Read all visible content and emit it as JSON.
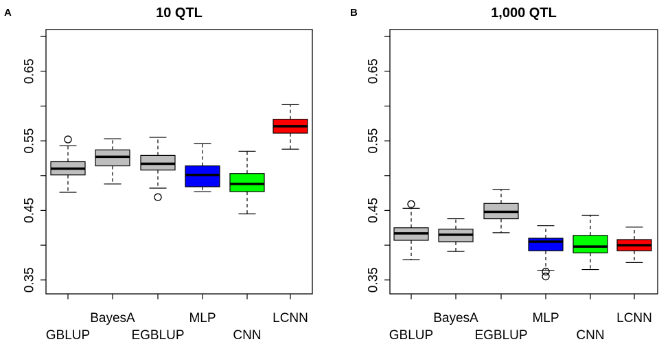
{
  "chart_data": [
    {
      "type": "boxplot",
      "panel_label": "A",
      "title": "10 QTL",
      "xlabel": "",
      "ylabel": "",
      "ylim": [
        0.33,
        0.71
      ],
      "yticks": [
        0.35,
        0.45,
        0.55,
        0.65
      ],
      "ytick_labels": [
        "0.35",
        "0.45",
        "0.55",
        "0.65"
      ],
      "categories": [
        "GBLUP",
        "BayesA",
        "EGBLUP",
        "MLP",
        "CNN",
        "LCNN"
      ],
      "boxes": [
        {
          "name": "GBLUP",
          "min": 0.476,
          "q1": 0.501,
          "median": 0.51,
          "q3": 0.52,
          "max": 0.543,
          "outliers": [
            0.552
          ],
          "color": "#bebebe"
        },
        {
          "name": "BayesA",
          "min": 0.488,
          "q1": 0.514,
          "median": 0.527,
          "q3": 0.537,
          "max": 0.553,
          "outliers": [],
          "color": "#bebebe"
        },
        {
          "name": "EGBLUP",
          "min": 0.482,
          "q1": 0.508,
          "median": 0.517,
          "q3": 0.529,
          "max": 0.555,
          "outliers": [
            0.469
          ],
          "color": "#bebebe"
        },
        {
          "name": "MLP",
          "min": 0.477,
          "q1": 0.484,
          "median": 0.501,
          "q3": 0.514,
          "max": 0.546,
          "outliers": [],
          "color": "#0000ff"
        },
        {
          "name": "CNN",
          "min": 0.445,
          "q1": 0.477,
          "median": 0.488,
          "q3": 0.503,
          "max": 0.535,
          "outliers": [],
          "color": "#00ff00"
        },
        {
          "name": "LCNN",
          "min": 0.538,
          "q1": 0.561,
          "median": 0.571,
          "q3": 0.581,
          "max": 0.602,
          "outliers": [],
          "color": "#ff0000"
        }
      ]
    },
    {
      "type": "boxplot",
      "panel_label": "B",
      "title": "1,000 QTL",
      "xlabel": "",
      "ylabel": "",
      "ylim": [
        0.33,
        0.71
      ],
      "yticks": [
        0.35,
        0.45,
        0.55,
        0.65
      ],
      "ytick_labels": [
        "0.35",
        "0.45",
        "0.55",
        "0.65"
      ],
      "categories": [
        "GBLUP",
        "BayesA",
        "EGBLUP",
        "MLP",
        "CNN",
        "LCNN"
      ],
      "boxes": [
        {
          "name": "GBLUP",
          "min": 0.379,
          "q1": 0.407,
          "median": 0.417,
          "q3": 0.425,
          "max": 0.453,
          "outliers": [
            0.459
          ],
          "color": "#bebebe"
        },
        {
          "name": "BayesA",
          "min": 0.391,
          "q1": 0.405,
          "median": 0.415,
          "q3": 0.423,
          "max": 0.438,
          "outliers": [],
          "color": "#bebebe"
        },
        {
          "name": "EGBLUP",
          "min": 0.418,
          "q1": 0.438,
          "median": 0.448,
          "q3": 0.46,
          "max": 0.48,
          "outliers": [],
          "color": "#bebebe"
        },
        {
          "name": "MLP",
          "min": 0.364,
          "q1": 0.392,
          "median": 0.405,
          "q3": 0.41,
          "max": 0.428,
          "outliers": [
            0.362,
            0.355
          ],
          "color": "#0000ff"
        },
        {
          "name": "CNN",
          "min": 0.365,
          "q1": 0.389,
          "median": 0.398,
          "q3": 0.414,
          "max": 0.443,
          "outliers": [],
          "color": "#00ff00"
        },
        {
          "name": "LCNN",
          "min": 0.375,
          "q1": 0.392,
          "median": 0.4,
          "q3": 0.408,
          "max": 0.426,
          "outliers": [],
          "color": "#ff0000"
        }
      ]
    }
  ]
}
